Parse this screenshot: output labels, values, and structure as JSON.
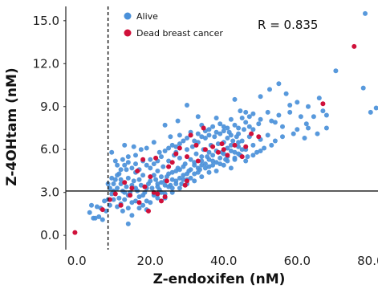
{
  "chart_data": {
    "type": "scatter",
    "xlabel": "Z-endoxifen (nM)",
    "ylabel": "Z-4OHtam (nM)",
    "xlim": [
      -3,
      82
    ],
    "ylim": [
      -1,
      16
    ],
    "x_ticks": [
      0,
      20,
      40,
      60,
      80
    ],
    "y_ticks": [
      0,
      3,
      6,
      9,
      12,
      15
    ],
    "x_tick_labels": [
      "0.0",
      "20.0",
      "40.0",
      "60.0",
      "80.0"
    ],
    "y_tick_labels": [
      "0.0",
      "3.0",
      "6.0",
      "9.0",
      "12.0",
      "15.0"
    ],
    "grid": false,
    "legend_position": "top-left",
    "annotation": "R = 0.835",
    "reference_lines": {
      "vertical_x": 8.5,
      "horizontal_y": 3.1
    },
    "series": [
      {
        "name": "Alive",
        "color": "#4a90d9",
        "points": [
          [
            78.5,
            15.5
          ],
          [
            78,
            10.3
          ],
          [
            80,
            8.6
          ],
          [
            81.5,
            8.9
          ],
          [
            70.5,
            11.5
          ],
          [
            67,
            8.7
          ],
          [
            68,
            7.5
          ],
          [
            64.5,
            8.3
          ],
          [
            62,
            6.8
          ],
          [
            62.5,
            7.8
          ],
          [
            60,
            7.4
          ],
          [
            58,
            8.6
          ],
          [
            57,
            9.9
          ],
          [
            55,
            10.6
          ],
          [
            52.5,
            10.2
          ],
          [
            50,
            9.7
          ],
          [
            48,
            8.5
          ],
          [
            46,
            8.6
          ],
          [
            44.5,
            8.7
          ],
          [
            43,
            9.5
          ],
          [
            44,
            7.1
          ],
          [
            47,
            7.6
          ],
          [
            49.5,
            7.8
          ],
          [
            53,
            8.0
          ],
          [
            56,
            7.6
          ],
          [
            61,
            8.3
          ],
          [
            65.5,
            7.1
          ],
          [
            42,
            8.1
          ],
          [
            40,
            7.6
          ],
          [
            41,
            6.8
          ],
          [
            38,
            8.2
          ],
          [
            36,
            7.4
          ],
          [
            34,
            7.7
          ],
          [
            33,
            8.3
          ],
          [
            31,
            7.2
          ],
          [
            30,
            9.1
          ],
          [
            27.5,
            8.0
          ],
          [
            28,
            7.0
          ],
          [
            27,
            6.2
          ],
          [
            25.5,
            6.9
          ],
          [
            24,
            7.7
          ],
          [
            22.5,
            5.8
          ],
          [
            21,
            6.5
          ],
          [
            19,
            6.1
          ],
          [
            17.5,
            6.0
          ],
          [
            16,
            5.6
          ],
          [
            14,
            5.5
          ],
          [
            15.5,
            6.2
          ],
          [
            13,
            6.3
          ],
          [
            12.5,
            5.3
          ],
          [
            11,
            4.9
          ],
          [
            9.5,
            5.8
          ],
          [
            10.5,
            5.2
          ],
          [
            11.5,
            4.3
          ],
          [
            12,
            3.6
          ],
          [
            13.5,
            4.6
          ],
          [
            9,
            3.3
          ],
          [
            9.5,
            4.0
          ],
          [
            10,
            3.1
          ],
          [
            8.5,
            2.5
          ],
          [
            9,
            2.1
          ],
          [
            8,
            1.7
          ],
          [
            7.5,
            2.4
          ],
          [
            6.5,
            1.9
          ],
          [
            6,
            1.3
          ],
          [
            5,
            1.2
          ],
          [
            5.5,
            2.0
          ],
          [
            4,
            2.1
          ],
          [
            3.5,
            1.6
          ],
          [
            4.5,
            1.2
          ],
          [
            7,
            1.1
          ],
          [
            8.5,
            3.6
          ],
          [
            9.5,
            2.9
          ],
          [
            10.5,
            3.9
          ],
          [
            11,
            3.3
          ],
          [
            11.5,
            2.6
          ],
          [
            12,
            2.2
          ],
          [
            12.5,
            3.1
          ],
          [
            13,
            2.5
          ],
          [
            13.5,
            3.4
          ],
          [
            14,
            4.0
          ],
          [
            14.5,
            3.0
          ],
          [
            15,
            2.3
          ],
          [
            15.5,
            3.8
          ],
          [
            16,
            4.4
          ],
          [
            16.5,
            3.1
          ],
          [
            17,
            2.7
          ],
          [
            17.5,
            3.5
          ],
          [
            18,
            4.2
          ],
          [
            18.5,
            3.0
          ],
          [
            19,
            2.4
          ],
          [
            19.5,
            3.6
          ],
          [
            20,
            4.7
          ],
          [
            20.5,
            3.3
          ],
          [
            21,
            2.8
          ],
          [
            21.5,
            3.9
          ],
          [
            22,
            4.5
          ],
          [
            22.5,
            3.2
          ],
          [
            23,
            3.7
          ],
          [
            23.5,
            4.8
          ],
          [
            24,
            2.9
          ],
          [
            24.5,
            4.1
          ],
          [
            25,
            5.2
          ],
          [
            25.5,
            3.5
          ],
          [
            26,
            4.4
          ],
          [
            26.5,
            5.6
          ],
          [
            27,
            3.8
          ],
          [
            27.5,
            4.7
          ],
          [
            28,
            5.4
          ],
          [
            28.5,
            3.6
          ],
          [
            29,
            4.2
          ],
          [
            29.5,
            5.0
          ],
          [
            30,
            6.0
          ],
          [
            30.5,
            4.5
          ],
          [
            31,
            5.3
          ],
          [
            31.5,
            6.2
          ],
          [
            32,
            4.9
          ],
          [
            32.5,
            5.7
          ],
          [
            33,
            6.5
          ],
          [
            33.5,
            4.6
          ],
          [
            34,
            5.2
          ],
          [
            34.5,
            6.0
          ],
          [
            35,
            6.8
          ],
          [
            35.5,
            5.5
          ],
          [
            36,
            4.8
          ],
          [
            36.5,
            6.3
          ],
          [
            37,
            5.6
          ],
          [
            37.5,
            6.9
          ],
          [
            38,
            5.1
          ],
          [
            38.5,
            6.4
          ],
          [
            39,
            7.1
          ],
          [
            39.5,
            5.8
          ],
          [
            40,
            6.5
          ],
          [
            40.5,
            5.3
          ],
          [
            41,
            6.1
          ],
          [
            41.5,
            7.2
          ],
          [
            42,
            5.9
          ],
          [
            42.5,
            6.6
          ],
          [
            43,
            5.4
          ],
          [
            43.5,
            6.9
          ],
          [
            44,
            6.2
          ],
          [
            44.5,
            5.6
          ],
          [
            45,
            6.6
          ],
          [
            45.5,
            7.4
          ],
          [
            46,
            6.0
          ],
          [
            46.5,
            5.5
          ],
          [
            47,
            6.9
          ],
          [
            48,
            6.3
          ],
          [
            49,
            5.8
          ],
          [
            50,
            6.7
          ],
          [
            51,
            6.1
          ],
          [
            52,
            7.0
          ],
          [
            54,
            6.6
          ],
          [
            12,
            3.9
          ],
          [
            13,
            3.0
          ],
          [
            14,
            2.8
          ],
          [
            15,
            3.5
          ],
          [
            16,
            3.3
          ],
          [
            17,
            3.9
          ],
          [
            18,
            2.8
          ],
          [
            19,
            3.3
          ],
          [
            20,
            3.8
          ],
          [
            21,
            4.2
          ],
          [
            22,
            3.6
          ],
          [
            23,
            4.1
          ],
          [
            24,
            3.5
          ],
          [
            25,
            4.3
          ],
          [
            26,
            3.9
          ],
          [
            27,
            4.5
          ],
          [
            28,
            4.0
          ],
          [
            29,
            4.8
          ],
          [
            30,
            4.3
          ],
          [
            31,
            4.6
          ],
          [
            32,
            5.1
          ],
          [
            33,
            4.7
          ],
          [
            34,
            5.5
          ],
          [
            35,
            5.0
          ],
          [
            36,
            5.8
          ],
          [
            37,
            5.2
          ],
          [
            38,
            5.9
          ],
          [
            39,
            5.4
          ],
          [
            40,
            5.7
          ],
          [
            41,
            5.5
          ],
          [
            42,
            6.3
          ],
          [
            43,
            5.8
          ],
          [
            44,
            6.5
          ],
          [
            45,
            6.0
          ],
          [
            36,
            4.4
          ],
          [
            34,
            4.1
          ],
          [
            32,
            3.8
          ],
          [
            30,
            3.6
          ],
          [
            28,
            3.3
          ],
          [
            26,
            3.0
          ],
          [
            24,
            2.6
          ],
          [
            22,
            2.6
          ],
          [
            20,
            2.3
          ],
          [
            18,
            2.1
          ],
          [
            16,
            2.4
          ],
          [
            14,
            1.9
          ],
          [
            12.5,
            1.7
          ],
          [
            11,
            2.0
          ],
          [
            10,
            2.5
          ],
          [
            15,
            1.4
          ],
          [
            14,
            0.8
          ],
          [
            17,
            1.9
          ],
          [
            19,
            1.8
          ],
          [
            21,
            2.9
          ],
          [
            23,
            3.0
          ],
          [
            25,
            3.4
          ],
          [
            27,
            3.6
          ],
          [
            29,
            3.9
          ],
          [
            31,
            4.0
          ],
          [
            33,
            4.4
          ],
          [
            35,
            4.7
          ],
          [
            37,
            4.9
          ],
          [
            39,
            5.0
          ],
          [
            41,
            5.2
          ],
          [
            43,
            5.3
          ],
          [
            10,
            3.6
          ],
          [
            11,
            4.2
          ],
          [
            12,
            4.6
          ],
          [
            13,
            4.9
          ],
          [
            14,
            5.1
          ],
          [
            15,
            4.7
          ],
          [
            16,
            5.0
          ],
          [
            17,
            4.6
          ],
          [
            18,
            5.2
          ],
          [
            19,
            4.9
          ],
          [
            20,
            5.3
          ],
          [
            21,
            5.0
          ],
          [
            22,
            5.2
          ],
          [
            23,
            5.5
          ],
          [
            24,
            5.9
          ],
          [
            25,
            6.1
          ],
          [
            26,
            6.3
          ],
          [
            27,
            5.8
          ],
          [
            28,
            6.4
          ],
          [
            29,
            6.6
          ],
          [
            30,
            6.8
          ],
          [
            31,
            7.0
          ],
          [
            32,
            6.6
          ],
          [
            33,
            7.1
          ],
          [
            34,
            6.9
          ],
          [
            35,
            7.3
          ],
          [
            36,
            7.0
          ],
          [
            37,
            7.6
          ],
          [
            38,
            7.2
          ],
          [
            39,
            7.8
          ],
          [
            40,
            7.3
          ],
          [
            41,
            7.5
          ],
          [
            42,
            7.0
          ],
          [
            43,
            7.7
          ],
          [
            44,
            7.5
          ],
          [
            45,
            8.2
          ],
          [
            46,
            7.9
          ],
          [
            47,
            8.3
          ],
          [
            48,
            7.4
          ],
          [
            50,
            8.1
          ],
          [
            52,
            8.6
          ],
          [
            54,
            7.9
          ],
          [
            55,
            8.4
          ],
          [
            58,
            9.1
          ],
          [
            60,
            9.3
          ],
          [
            63,
            9.0
          ],
          [
            66,
            9.6
          ],
          [
            68,
            8.4
          ],
          [
            22,
            3.4
          ],
          [
            24,
            3.8
          ],
          [
            26,
            3.3
          ],
          [
            28,
            4.6
          ],
          [
            30,
            3.9
          ],
          [
            32,
            4.3
          ],
          [
            34,
            4.9
          ],
          [
            36,
            5.3
          ],
          [
            38,
            4.5
          ],
          [
            40,
            4.9
          ],
          [
            42,
            4.7
          ],
          [
            44,
            5.7
          ],
          [
            46,
            5.2
          ],
          [
            48,
            5.6
          ],
          [
            50,
            5.9
          ],
          [
            53,
            6.3
          ],
          [
            56,
            6.9
          ],
          [
            59,
            7.1
          ],
          [
            63,
            7.5
          ]
        ]
      },
      {
        "name": "Dead breast cancer",
        "color": "#d0103a",
        "points": [
          [
            -0.5,
            0.2
          ],
          [
            7,
            1.8
          ],
          [
            9,
            2.5
          ],
          [
            10.5,
            2.9
          ],
          [
            12,
            2.1
          ],
          [
            13,
            3.7
          ],
          [
            14.5,
            2.8
          ],
          [
            15,
            3.3
          ],
          [
            16.5,
            4.5
          ],
          [
            17,
            2.3
          ],
          [
            18.5,
            3.4
          ],
          [
            19.5,
            1.7
          ],
          [
            20,
            4.1
          ],
          [
            21,
            3.0
          ],
          [
            22,
            2.9
          ],
          [
            23,
            2.4
          ],
          [
            24.5,
            3.8
          ],
          [
            25,
            4.8
          ],
          [
            26,
            5.1
          ],
          [
            27,
            5.7
          ],
          [
            28,
            6.1
          ],
          [
            29.5,
            3.5
          ],
          [
            30,
            5.5
          ],
          [
            31,
            7.0
          ],
          [
            32.5,
            6.3
          ],
          [
            33,
            5.2
          ],
          [
            34.5,
            7.5
          ],
          [
            35,
            6.0
          ],
          [
            37,
            6.2
          ],
          [
            38.5,
            5.8
          ],
          [
            39.5,
            6.4
          ],
          [
            40,
            6.0
          ],
          [
            41,
            5.6
          ],
          [
            43,
            6.3
          ],
          [
            45,
            5.5
          ],
          [
            46,
            6.2
          ],
          [
            47.5,
            7.1
          ],
          [
            49.5,
            6.9
          ],
          [
            30,
            3.8
          ],
          [
            24,
            2.7
          ],
          [
            67,
            9.2
          ],
          [
            75.5,
            13.2
          ],
          [
            18,
            5.3
          ],
          [
            21.5,
            5.4
          ]
        ]
      }
    ]
  }
}
